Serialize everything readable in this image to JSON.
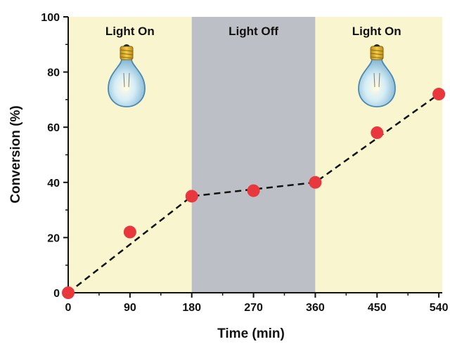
{
  "chart_data": {
    "type": "scatter",
    "xlabel": "Time (min)",
    "ylabel": "Conversion (%)",
    "xlim": [
      0,
      545
    ],
    "ylim": [
      0,
      100
    ],
    "x_ticks": [
      0,
      90,
      180,
      270,
      360,
      450,
      540
    ],
    "y_ticks": [
      0,
      20,
      40,
      60,
      80,
      100
    ],
    "series": [
      {
        "x": [
          0,
          90,
          180,
          270,
          360,
          450,
          540
        ],
        "y": [
          0,
          22,
          35,
          37,
          40,
          58,
          72
        ]
      }
    ],
    "trend_line": {
      "style": "dashed",
      "points": [
        [
          0,
          0
        ],
        [
          180,
          35
        ],
        [
          360,
          40
        ],
        [
          540,
          72
        ]
      ]
    },
    "regions": [
      {
        "label": "Light On",
        "x_start": 0,
        "x_end": 180,
        "color": "#f8f5cf",
        "icon": "light-bulb-icon"
      },
      {
        "label": "Light Off",
        "x_start": 180,
        "x_end": 360,
        "color": "#bcbfc5"
      },
      {
        "label": "Light On",
        "x_start": 360,
        "x_end": 545,
        "color": "#f8f5cf",
        "icon": "light-bulb-icon"
      }
    ],
    "marker_color": "#e8383d",
    "grid": false
  }
}
